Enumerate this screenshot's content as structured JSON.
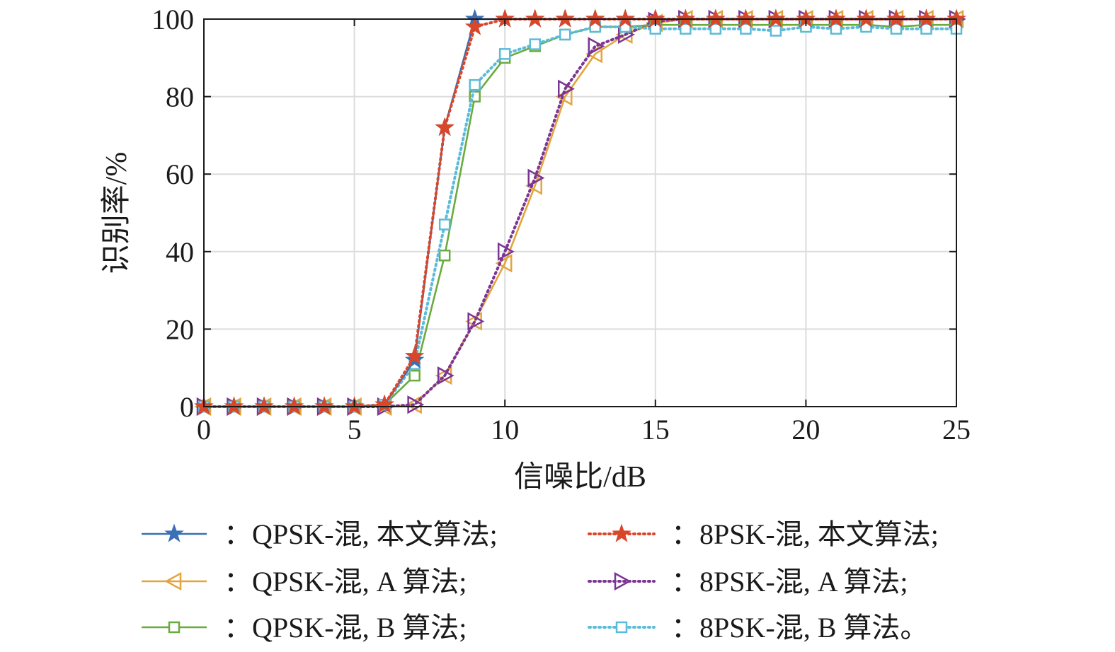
{
  "chart_data": {
    "type": "line",
    "xlabel": "信噪比/dB",
    "ylabel": "识别率/%",
    "xlim": [
      0,
      25
    ],
    "ylim": [
      0,
      100
    ],
    "xticks": [
      0,
      5,
      10,
      15,
      20,
      25
    ],
    "yticks": [
      0,
      20,
      40,
      60,
      80,
      100
    ],
    "grid": true,
    "legend_position": "bottom",
    "x": [
      0,
      1,
      2,
      3,
      4,
      5,
      6,
      7,
      8,
      9,
      10,
      11,
      12,
      13,
      14,
      15,
      16,
      17,
      18,
      19,
      20,
      21,
      22,
      23,
      24,
      25
    ],
    "series": [
      {
        "name": "QPSK-混, 本文算法;",
        "color": "#3b6fb6",
        "marker": "star",
        "line": "solid",
        "values": [
          0,
          0,
          0,
          0,
          0,
          0,
          0.5,
          12,
          72,
          100,
          100,
          100,
          100,
          100,
          100,
          100,
          100,
          100,
          100,
          100,
          100,
          100,
          100,
          100,
          100,
          100
        ]
      },
      {
        "name": "8PSK-混, 本文算法;",
        "color": "#d9472b",
        "marker": "star",
        "line": "dotted",
        "values": [
          0,
          0,
          0,
          0,
          0,
          0,
          0.5,
          13,
          72,
          98,
          100,
          100,
          100,
          100,
          100,
          100,
          100,
          100,
          100,
          100,
          100,
          100,
          100,
          100,
          100,
          100
        ]
      },
      {
        "name": "QPSK-混, A 算法;",
        "color": "#e3a53c",
        "marker": "triangle-left",
        "line": "solid",
        "values": [
          0,
          0,
          0,
          0,
          0,
          0,
          0,
          0.5,
          8,
          22,
          37,
          57,
          80,
          91,
          96,
          99,
          100,
          100,
          100,
          100,
          100,
          100,
          100,
          100,
          100,
          100
        ]
      },
      {
        "name": "8PSK-混, A 算法;",
        "color": "#7b3594",
        "marker": "triangle-right",
        "line": "dotted",
        "values": [
          0,
          0,
          0,
          0,
          0,
          0,
          0,
          0.5,
          8,
          22,
          40,
          59,
          82,
          93,
          96,
          99.5,
          100,
          100,
          100,
          100,
          100,
          100,
          100,
          100,
          100,
          100
        ]
      },
      {
        "name": "QPSK-混, B 算法;",
        "color": "#6aab3f",
        "marker": "square",
        "line": "solid",
        "values": [
          0,
          0,
          0,
          0,
          0,
          0,
          0.5,
          8,
          39,
          80,
          90,
          93,
          96,
          98,
          98,
          98.5,
          98.5,
          98.5,
          98.5,
          98.5,
          98.5,
          98.5,
          98.5,
          98,
          98.5,
          98.5
        ]
      },
      {
        "name": "8PSK-混, B 算法。",
        "color": "#5bbbd9",
        "marker": "square",
        "line": "dotted",
        "values": [
          0,
          0,
          0,
          0,
          0,
          0,
          0.5,
          11,
          47,
          83,
          91,
          93.5,
          96,
          98,
          98,
          97.5,
          97.5,
          97.5,
          97.5,
          97,
          98,
          97.5,
          98,
          97.5,
          97.5,
          97.5
        ]
      }
    ]
  }
}
